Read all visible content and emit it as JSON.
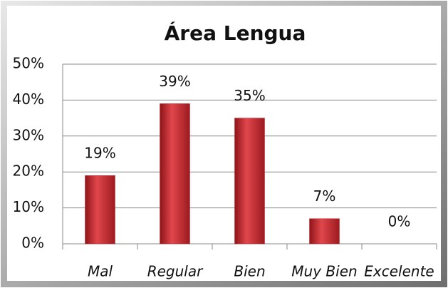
{
  "chart_data": {
    "type": "bar",
    "title": "Área Lengua",
    "categories": [
      "Mal",
      "Regular",
      "Bien",
      "Muy Bien",
      "Excelente"
    ],
    "values": [
      19,
      39,
      35,
      7,
      0
    ],
    "value_labels": [
      "19%",
      "39%",
      "35%",
      "7%",
      "0%"
    ],
    "color": "#c0272d",
    "ylim": [
      0,
      50
    ],
    "yticks": [
      {
        "value": 0,
        "label": "0%"
      },
      {
        "value": 10,
        "label": "10%"
      },
      {
        "value": 20,
        "label": "20%"
      },
      {
        "value": 30,
        "label": "30%"
      },
      {
        "value": 40,
        "label": "40%"
      },
      {
        "value": 50,
        "label": "50%"
      }
    ],
    "grid": true
  }
}
